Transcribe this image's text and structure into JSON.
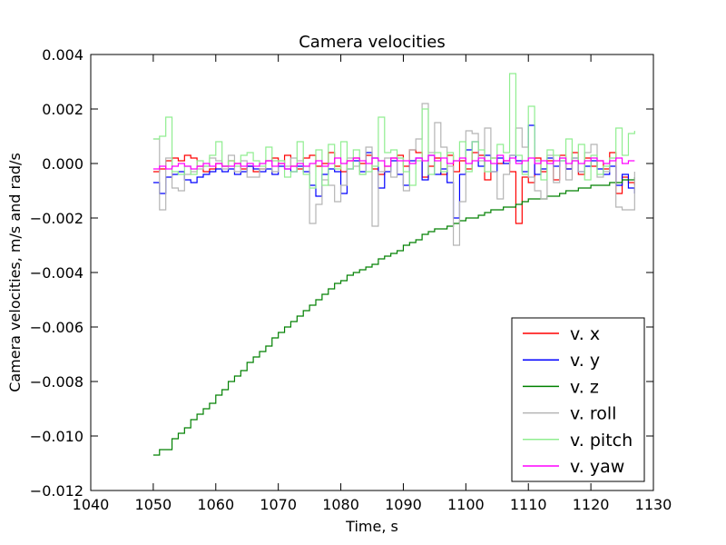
{
  "chart_data": {
    "type": "line",
    "title": "Camera velocities",
    "xlabel": "Time, s",
    "ylabel": "Camera velocities, m/s and rad/s",
    "xlim": [
      1040,
      1130
    ],
    "ylim": [
      -0.012,
      0.004
    ],
    "xticks": [
      1040,
      1050,
      1060,
      1070,
      1080,
      1090,
      1100,
      1110,
      1120,
      1130
    ],
    "xtick_labels": [
      "1040",
      "1050",
      "1060",
      "1070",
      "1080",
      "1090",
      "1100",
      "1110",
      "1120",
      "1130"
    ],
    "yticks": [
      -0.012,
      -0.01,
      -0.008,
      -0.006,
      -0.004,
      -0.002,
      0.0,
      0.002,
      0.004
    ],
    "ytick_labels": [
      "−0.012",
      "−0.010",
      "−0.008",
      "−0.006",
      "−0.004",
      "−0.002",
      "0.000",
      "0.002",
      "0.004"
    ],
    "grid": false,
    "legend_position": "lower-right",
    "x": [
      1050,
      1051,
      1052,
      1053,
      1054,
      1055,
      1056,
      1057,
      1058,
      1059,
      1060,
      1061,
      1062,
      1063,
      1064,
      1065,
      1066,
      1067,
      1068,
      1069,
      1070,
      1071,
      1072,
      1073,
      1074,
      1075,
      1076,
      1077,
      1078,
      1079,
      1080,
      1081,
      1082,
      1083,
      1084,
      1085,
      1086,
      1087,
      1088,
      1089,
      1090,
      1091,
      1092,
      1093,
      1094,
      1095,
      1096,
      1097,
      1098,
      1099,
      1100,
      1101,
      1102,
      1103,
      1104,
      1105,
      1106,
      1107,
      1108,
      1109,
      1110,
      1111,
      1112,
      1113,
      1114,
      1115,
      1116,
      1117,
      1118,
      1119,
      1120,
      1121,
      1122,
      1123,
      1124,
      1125,
      1126,
      1127
    ],
    "series": [
      {
        "name": "v. x",
        "color": "#ff0000",
        "values": [
          -0.0003,
          -0.0002,
          0.0001,
          0.0002,
          0.0001,
          0.0003,
          0.0002,
          -0.0001,
          -0.0003,
          -0.0002,
          0.0,
          -0.0001,
          0.0001,
          0.0,
          -0.0002,
          -0.0001,
          -0.0003,
          -0.0002,
          0.0001,
          0.0002,
          0.0,
          0.0003,
          -0.0001,
          -0.0002,
          0.0002,
          0.0003,
          -0.0001,
          0.0,
          0.0004,
          -0.0001,
          -0.0003,
          0.0001,
          0.0002,
          0.0,
          0.0003,
          -0.0002,
          -0.0004,
          -0.0001,
          0.0002,
          0.0003,
          -0.0001,
          0.0005,
          0.0004,
          -0.0005,
          -0.0001,
          0.0002,
          -0.0004,
          0.0003,
          -0.0003,
          0.0001,
          -0.0002,
          0.0004,
          0.0003,
          -0.0006,
          0.0002,
          0.0,
          0.0001,
          -0.0003,
          -0.0022,
          -0.0005,
          -0.0007,
          0.0002,
          -0.0003,
          0.0001,
          -0.0006,
          0.0003,
          -0.0002,
          0.0004,
          -0.0004,
          0.0002,
          -0.0001,
          0.0001,
          -0.0002,
          0.0004,
          -0.0011,
          -0.0005,
          -0.0007,
          -0.0008
        ]
      },
      {
        "name": "v. y",
        "color": "#0000ff",
        "values": [
          -0.0007,
          -0.0011,
          -0.0005,
          -0.0004,
          -0.0003,
          -0.0006,
          -0.0007,
          -0.0005,
          -0.0004,
          -0.0003,
          -0.0002,
          -0.0003,
          -0.0002,
          -0.0004,
          -0.0003,
          -0.0001,
          -0.0002,
          -0.0003,
          -0.0002,
          -0.0004,
          -0.0001,
          -0.0002,
          -0.0003,
          -0.0001,
          -0.0003,
          -0.0008,
          -0.0012,
          -0.0004,
          -0.0002,
          -0.0003,
          -0.0011,
          -0.0002,
          0.0001,
          -0.0003,
          0.0004,
          0.0002,
          -0.0009,
          -0.0003,
          0.0001,
          -0.0004,
          -0.0008,
          0.0001,
          0.0002,
          -0.0006,
          0.0003,
          -0.0004,
          -0.0002,
          -0.0007,
          -0.002,
          -0.0004,
          0.0005,
          0.0008,
          -0.0001,
          0.0003,
          -0.0003,
          0.0002,
          0.0,
          0.0003,
          0.0001,
          -0.0003,
          0.0014,
          -0.0004,
          -0.0002,
          0.0002,
          -0.0001,
          0.0001,
          -0.0002,
          0.0002,
          -0.0003,
          -0.0001,
          0.0001,
          -0.0002,
          -0.0004,
          -0.0001,
          -0.0008,
          -0.0004,
          -0.0009,
          -0.0011
        ]
      },
      {
        "name": "v. z",
        "color": "#008000",
        "values": [
          -0.0107,
          -0.0105,
          -0.0105,
          -0.0101,
          -0.0099,
          -0.0097,
          -0.0094,
          -0.0092,
          -0.009,
          -0.0088,
          -0.0085,
          -0.0083,
          -0.008,
          -0.0078,
          -0.0076,
          -0.0073,
          -0.0071,
          -0.0069,
          -0.0067,
          -0.0064,
          -0.0062,
          -0.006,
          -0.0058,
          -0.0056,
          -0.0054,
          -0.0052,
          -0.005,
          -0.0048,
          -0.0046,
          -0.0044,
          -0.0043,
          -0.0041,
          -0.004,
          -0.0039,
          -0.0038,
          -0.0037,
          -0.0035,
          -0.0034,
          -0.0033,
          -0.0032,
          -0.003,
          -0.0029,
          -0.0028,
          -0.0026,
          -0.0025,
          -0.0024,
          -0.0024,
          -0.0023,
          -0.0022,
          -0.0021,
          -0.002,
          -0.002,
          -0.0019,
          -0.0018,
          -0.0017,
          -0.0017,
          -0.0016,
          -0.0016,
          -0.0015,
          -0.0014,
          -0.0013,
          -0.0013,
          -0.0013,
          -0.0012,
          -0.0012,
          -0.0011,
          -0.001,
          -0.001,
          -0.0009,
          -0.0009,
          -0.0008,
          -0.0008,
          -0.0008,
          -0.0007,
          -0.0007,
          -0.0006,
          -0.0006,
          -0.0005
        ]
      },
      {
        "name": "v. roll",
        "color": "#b5b5b5",
        "values": [
          0.0009,
          -0.0017,
          0.0002,
          -0.0009,
          -0.001,
          -0.0004,
          -0.0003,
          -0.0002,
          -0.0001,
          0.0002,
          0.0001,
          -0.0002,
          0.0003,
          -0.0003,
          0.0001,
          -0.0005,
          -0.0005,
          -0.0002,
          0.0001,
          -0.0003,
          0.0001,
          -0.0001,
          0.0002,
          0.0001,
          -0.0001,
          -0.0022,
          -0.0015,
          -0.0006,
          -0.0008,
          -0.0014,
          -0.0008,
          0.0002,
          -0.0001,
          -0.0004,
          0.0006,
          -0.0023,
          -0.0003,
          0.0002,
          -0.0005,
          0.0002,
          -0.001,
          0.0005,
          0.0009,
          0.0022,
          0.0004,
          0.0015,
          0.0006,
          -0.0001,
          -0.003,
          -0.0014,
          0.0012,
          0.0011,
          0.0001,
          0.0013,
          -0.0003,
          -0.0013,
          -0.0004,
          0.0003,
          0.0013,
          0.0006,
          -0.0005,
          -0.001,
          -0.0013,
          0.0003,
          -0.0007,
          0.0002,
          -0.0006,
          0.0002,
          -0.0003,
          0.0004,
          0.0007,
          -0.0005,
          -0.0003,
          0.0002,
          -0.0016,
          -0.0017,
          -0.0017,
          -0.0003
        ]
      },
      {
        "name": "v. pitch",
        "color": "#90ee90",
        "values": [
          0.0009,
          0.001,
          0.0017,
          -0.0003,
          -0.0004,
          -0.0001,
          -0.0004,
          0.0001,
          -0.0001,
          0.0003,
          0.0008,
          -0.0001,
          0.0001,
          -0.0001,
          0.0003,
          0.0004,
          0.0001,
          -0.0001,
          0.0006,
          0.0001,
          0.0001,
          -0.0005,
          -0.0003,
          0.0008,
          -0.0004,
          -0.0009,
          0.0005,
          -0.0008,
          0.0007,
          -0.0002,
          0.0008,
          -0.0002,
          0.0005,
          -0.0004,
          -0.0003,
          -0.0001,
          0.0017,
          0.0004,
          0.0005,
          0.0002,
          -0.0003,
          -0.0008,
          0.0001,
          0.002,
          -0.0004,
          0.0004,
          -0.0003,
          0.0004,
          0.0001,
          0.0008,
          -0.0003,
          0.0008,
          0.0005,
          -0.0003,
          0.0002,
          0.0007,
          0.0004,
          0.0033,
          0.0003,
          -0.0004,
          0.0021,
          0.0001,
          -0.0006,
          0.0005,
          0.0003,
          0.0001,
          0.0009,
          0.0001,
          0.0007,
          -0.0006,
          0.0003,
          -0.0004,
          -0.0001,
          0.0002,
          0.0013,
          0.0003,
          0.0011,
          0.0012
        ]
      },
      {
        "name": "v. yaw",
        "color": "#ff00ff",
        "values": [
          -0.0002,
          -0.0001,
          -0.0002,
          -0.0001,
          0.0,
          -0.0001,
          -0.0002,
          -0.0001,
          0.0,
          -0.0001,
          0.0,
          -0.0001,
          -0.0001,
          0.0,
          -0.0001,
          0.0,
          -0.0001,
          0.0,
          0.0001,
          -0.0001,
          0.0,
          -0.0002,
          -0.0001,
          0.0,
          -0.0001,
          0.0,
          0.0001,
          -0.0001,
          0.0,
          0.0002,
          0.0,
          0.0001,
          0.0002,
          0.0001,
          0.0,
          0.0002,
          0.0001,
          -0.0001,
          0.0002,
          0.0001,
          0.0001,
          0.0,
          0.0002,
          0.0001,
          0.0003,
          0.0001,
          0.0002,
          0.0,
          0.0001,
          0.0002,
          0.0,
          0.0001,
          0.0002,
          0.0001,
          0.0,
          0.0003,
          0.0001,
          0.0002,
          0.0,
          0.0001,
          0.0002,
          0.0,
          0.0001,
          0.0,
          0.0001,
          0.0002,
          0.0,
          0.0001,
          0.0,
          0.0001,
          0.0002,
          0.0001,
          0.0,
          0.0001,
          0.0002,
          0.0,
          0.0001,
          0.0001
        ]
      }
    ]
  }
}
